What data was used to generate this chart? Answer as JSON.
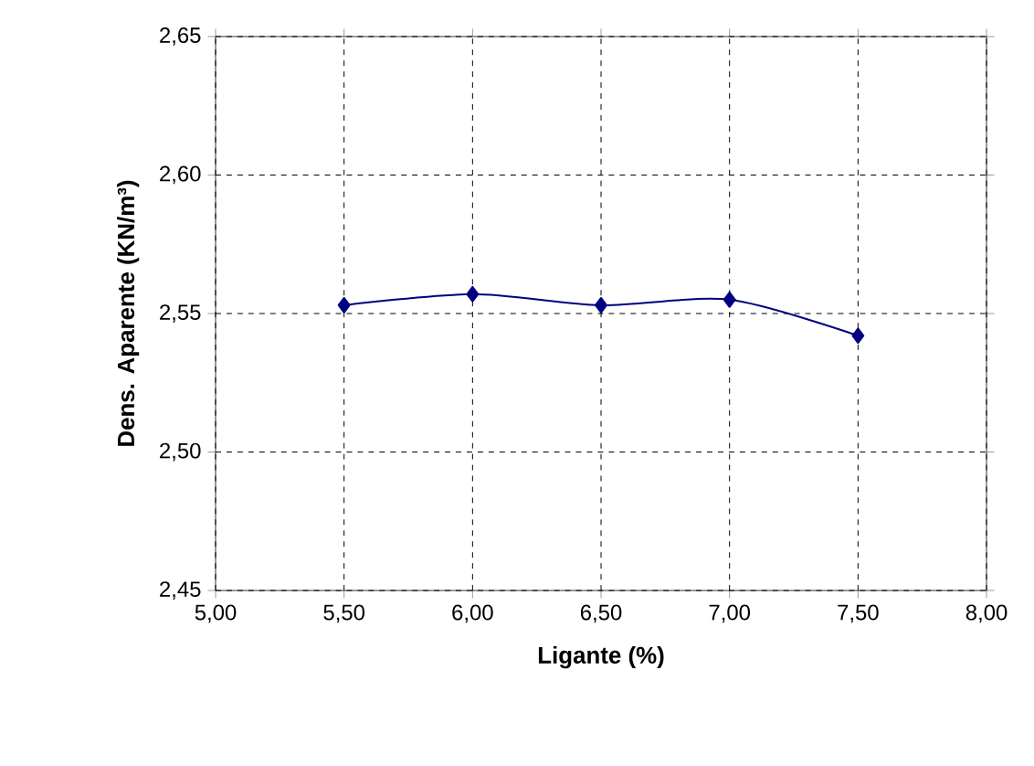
{
  "chart_data": {
    "type": "line",
    "xlabel": "Ligante (%)",
    "ylabel": "Dens. Aparente (KN/m³)",
    "x": [
      5.5,
      6.0,
      6.5,
      7.0,
      7.5
    ],
    "series": [
      {
        "color": "#000080",
        "values": [
          2.553,
          2.557,
          2.553,
          2.555,
          2.542
        ]
      }
    ],
    "xlim": [
      5.0,
      8.0
    ],
    "ylim": [
      2.45,
      2.65
    ],
    "xticks": [
      {
        "value": 5.0,
        "label": "5,00"
      },
      {
        "value": 5.5,
        "label": "5,50"
      },
      {
        "value": 6.0,
        "label": "6,00"
      },
      {
        "value": 6.5,
        "label": "6,50"
      },
      {
        "value": 7.0,
        "label": "7,00"
      },
      {
        "value": 7.5,
        "label": "7,50"
      },
      {
        "value": 8.0,
        "label": "8,00"
      }
    ],
    "yticks": [
      {
        "value": 2.45,
        "label": "2,45"
      },
      {
        "value": 2.5,
        "label": "2,50"
      },
      {
        "value": 2.55,
        "label": "2,55"
      },
      {
        "value": 2.6,
        "label": "2,60"
      },
      {
        "value": 2.65,
        "label": "2,65"
      }
    ],
    "grid": true,
    "marker": "diamond",
    "line_style": "solid"
  }
}
